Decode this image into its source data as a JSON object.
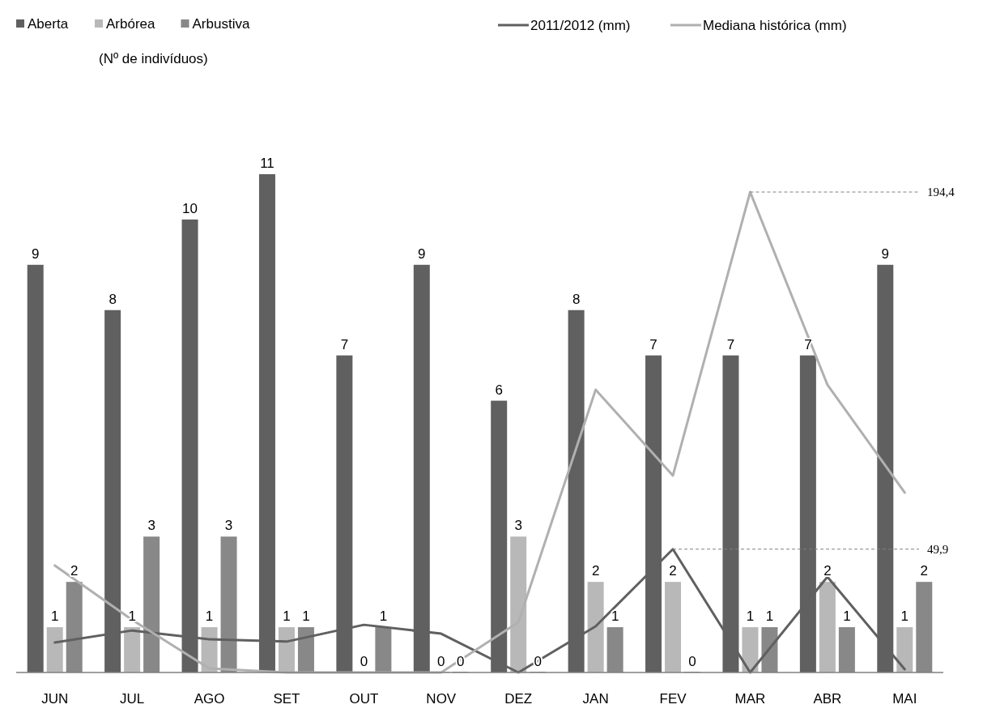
{
  "chart_data": {
    "type": "bar",
    "categories": [
      "JUN",
      "JUL",
      "AGO",
      "SET",
      "OUT",
      "NOV",
      "DEZ",
      "JAN",
      "FEV",
      "MAR",
      "ABR",
      "MAI"
    ],
    "series": [
      {
        "name": "Aberta",
        "color": "#606060",
        "values": [
          9,
          8,
          10,
          11,
          7,
          9,
          6,
          8,
          7,
          7,
          7,
          9
        ],
        "value_labels": [
          "9",
          "8",
          "10",
          "11",
          "7",
          "9",
          "6",
          "8",
          "7",
          "7",
          "7",
          "9"
        ]
      },
      {
        "name": "Arbórea",
        "color": "#b8b8b8",
        "values": [
          1,
          1,
          1,
          1,
          0,
          0,
          3,
          2,
          2,
          1,
          2,
          1
        ],
        "value_labels": [
          "1",
          "1",
          "1",
          "1",
          "0",
          "0",
          "3",
          "2",
          "2",
          "1",
          "2",
          "1"
        ]
      },
      {
        "name": "Arbustiva",
        "color": "#888888",
        "values": [
          2,
          3,
          3,
          1,
          1,
          0,
          0,
          1,
          0,
          1,
          1,
          2
        ],
        "value_labels": [
          "2",
          "3",
          "3",
          "1",
          "1",
          "0",
          "0",
          "1",
          "0",
          "1",
          "1",
          "2"
        ]
      },
      {
        "name": "2011/2012 (mm)",
        "type": "line",
        "axis": "y2",
        "color": "#606060",
        "values": [
          12.1,
          17,
          13.4,
          12.5,
          19.3,
          15.7,
          0,
          18.7,
          49.9,
          0,
          38.7,
          1.3
        ],
        "value_labels": [
          null,
          null,
          null,
          null,
          null,
          null,
          null,
          null,
          "49,9",
          null,
          null,
          null
        ]
      },
      {
        "name": "Mediana histórica (mm)",
        "type": "line",
        "axis": "y2",
        "color": "#b0b0b0",
        "values": [
          43.3,
          21.3,
          1.6,
          0,
          0,
          0,
          20.3,
          114.4,
          79.7,
          194.4,
          116.4,
          72.8
        ],
        "value_labels": [
          null,
          null,
          null,
          null,
          null,
          null,
          null,
          null,
          null,
          "194,4",
          null,
          null
        ]
      }
    ],
    "tick_labels": "x",
    "legend": "top",
    "legend_title": "(Nº de indivíduos)"
  }
}
